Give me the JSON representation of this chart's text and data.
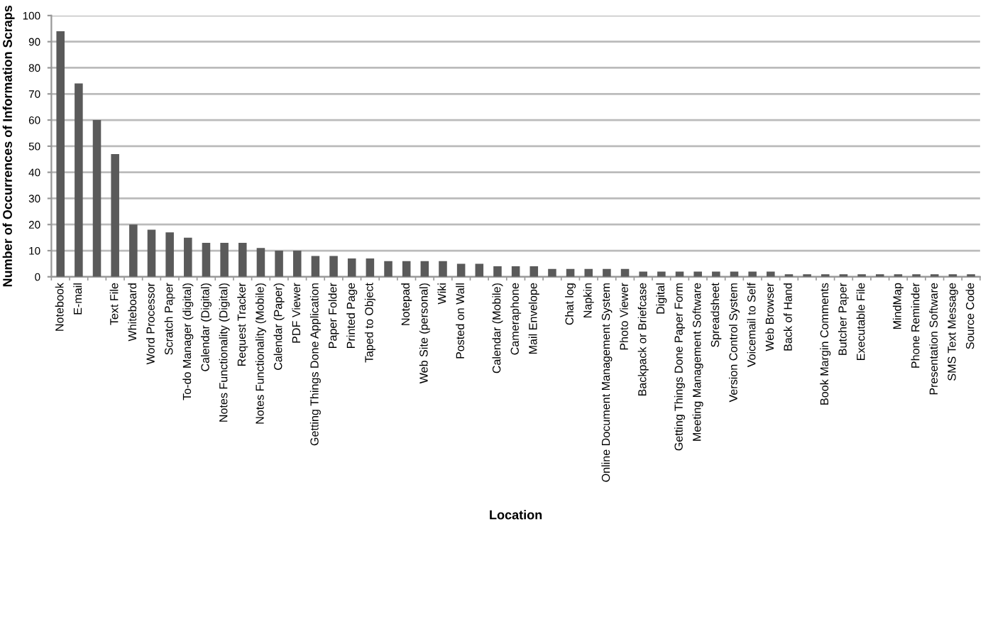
{
  "chart_data": {
    "type": "bar",
    "xlabel": "Location",
    "ylabel": "Number of Occurrences of Information Scraps",
    "categories": [
      "Notebook",
      "E-mail",
      null,
      "Text File",
      "Whiteboard",
      "Word Processor",
      "Scratch Paper",
      "To-do Manager (digital)",
      "Calendar (Digital)",
      "Notes Functionality (Digital)",
      "Request Tracker",
      "Notes Functionality (Mobile)",
      "Calendar (Paper)",
      "PDF Viewer",
      "Getting Things Done Application",
      "Paper Folder",
      "Printed Page",
      "Taped to Object",
      null,
      "Notepad",
      "Web Site (personal)",
      "Wiki",
      "Posted on Wall",
      null,
      "Calendar (Mobile)",
      "Cameraphone",
      "Mail Envelope",
      null,
      "Chat log",
      "Napkin",
      "Online Document Management System",
      "Photo Viewer",
      "Backpack or Briefcase",
      "Digital",
      "Getting Things Done Paper Form",
      "Meeting Management Software",
      "Spreadsheet",
      "Version Control System",
      "Voicemail to Self",
      "Web Browser",
      "Back of Hand",
      null,
      "Book Margin Comments",
      "Butcher Paper",
      "Executable File",
      null,
      "MindMap",
      "Phone Reminder",
      "Presentation Software",
      "SMS Text Message",
      "Source Code"
    ],
    "values": [
      94,
      74,
      60,
      47,
      20,
      18,
      17,
      15,
      13,
      13,
      13,
      11,
      10,
      10,
      8,
      8,
      7,
      7,
      6,
      6,
      6,
      6,
      5,
      5,
      4,
      4,
      4,
      3,
      3,
      3,
      3,
      3,
      2,
      2,
      2,
      2,
      2,
      2,
      2,
      2,
      1,
      1,
      1,
      1,
      1,
      1,
      1,
      1,
      1,
      1,
      1
    ],
    "color": "#5a5a5a",
    "ylim": [
      0,
      100
    ],
    "yticks": [
      0,
      10,
      20,
      30,
      40,
      50,
      60,
      70,
      80,
      90,
      100
    ],
    "grid": "y"
  }
}
